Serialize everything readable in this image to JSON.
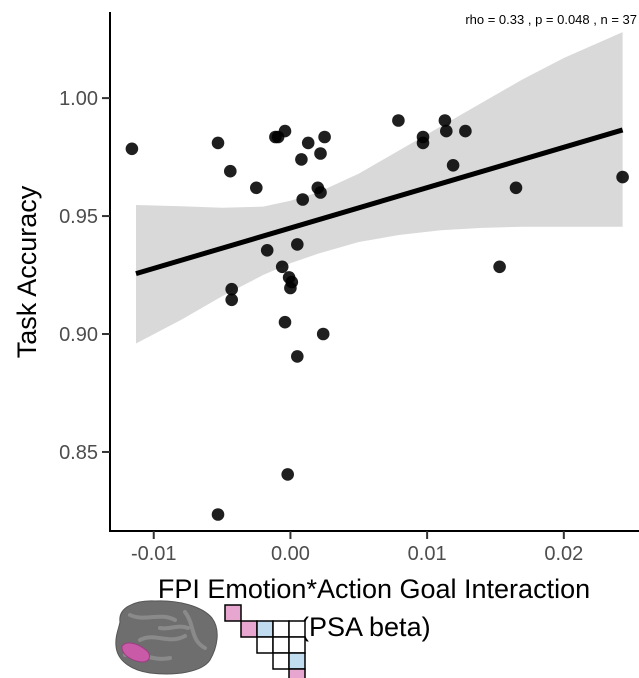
{
  "chart_data": {
    "type": "scatter",
    "title": "",
    "annotation": "rho =  0.33 , p =  0.048 , n =  37",
    "xlabel_line1": "FPI Emotion*Action Goal Interaction",
    "xlabel_line2": "(PSA beta)",
    "ylabel": "Task Accuracy",
    "xlim": [
      -0.0132,
      0.0255
    ],
    "ylim": [
      0.8165,
      1.0365
    ],
    "x_ticks": [
      {
        "value": -0.01,
        "label": "-0.01"
      },
      {
        "value": 0.0,
        "label": "0.00"
      },
      {
        "value": 0.01,
        "label": "0.01"
      },
      {
        "value": 0.02,
        "label": "0.02"
      }
    ],
    "y_ticks": [
      {
        "value": 0.85,
        "label": "0.85"
      },
      {
        "value": 0.9,
        "label": "0.90"
      },
      {
        "value": 0.95,
        "label": "0.95"
      },
      {
        "value": 1.0,
        "label": "1.00"
      }
    ],
    "grid": false,
    "fit_line": {
      "x": [
        -0.0113,
        0.0243
      ],
      "y": [
        0.9256,
        0.9865
      ]
    },
    "confidence_band": {
      "x": [
        -0.0113,
        -0.008,
        -0.005,
        -0.002,
        0.0,
        0.002,
        0.005,
        0.008,
        0.011,
        0.014,
        0.017,
        0.02,
        0.0243
      ],
      "upper": [
        0.9547,
        0.9542,
        0.9535,
        0.954,
        0.9565,
        0.96,
        0.968,
        0.978,
        0.988,
        0.998,
        1.008,
        1.017,
        1.028
      ],
      "lower": [
        0.896,
        0.906,
        0.916,
        0.925,
        0.93,
        0.934,
        0.939,
        0.942,
        0.944,
        0.945,
        0.9455,
        0.9455,
        0.9455
      ]
    },
    "points": [
      {
        "x": -0.0116,
        "y": 0.9785
      },
      {
        "x": -0.0053,
        "y": 0.981
      },
      {
        "x": -0.0053,
        "y": 0.8235
      },
      {
        "x": -0.0044,
        "y": 0.969
      },
      {
        "x": -0.0043,
        "y": 0.919
      },
      {
        "x": -0.0043,
        "y": 0.9145
      },
      {
        "x": -0.0025,
        "y": 0.962
      },
      {
        "x": -0.0017,
        "y": 0.9355
      },
      {
        "x": -0.0011,
        "y": 0.9835
      },
      {
        "x": -0.0009,
        "y": 0.9835
      },
      {
        "x": -0.0006,
        "y": 0.9285
      },
      {
        "x": -0.0004,
        "y": 0.986
      },
      {
        "x": -0.0004,
        "y": 0.905
      },
      {
        "x": -0.0002,
        "y": 0.8405
      },
      {
        "x": -0.0001,
        "y": 0.924
      },
      {
        "x": 0.0,
        "y": 0.9195
      },
      {
        "x": 0.0001,
        "y": 0.922
      },
      {
        "x": 0.0005,
        "y": 0.938
      },
      {
        "x": 0.0005,
        "y": 0.8905
      },
      {
        "x": 0.0008,
        "y": 0.974
      },
      {
        "x": 0.0009,
        "y": 0.957
      },
      {
        "x": 0.0013,
        "y": 0.981
      },
      {
        "x": 0.002,
        "y": 0.962
      },
      {
        "x": 0.0022,
        "y": 0.96
      },
      {
        "x": 0.0022,
        "y": 0.9765
      },
      {
        "x": 0.0024,
        "y": 0.9
      },
      {
        "x": 0.0025,
        "y": 0.9835
      },
      {
        "x": 0.0079,
        "y": 0.9905
      },
      {
        "x": 0.0097,
        "y": 0.9835
      },
      {
        "x": 0.0097,
        "y": 0.981
      },
      {
        "x": 0.0113,
        "y": 0.9905
      },
      {
        "x": 0.0114,
        "y": 0.986
      },
      {
        "x": 0.0119,
        "y": 0.9715
      },
      {
        "x": 0.0128,
        "y": 0.986
      },
      {
        "x": 0.0153,
        "y": 0.9285
      },
      {
        "x": 0.0165,
        "y": 0.962
      },
      {
        "x": 0.0243,
        "y": 0.9665
      }
    ]
  },
  "legend_graphic": {
    "brain_color": "#6e6e6e",
    "highlight_color": "#c85aa8",
    "matrix_pink": "#e7a6cf",
    "matrix_blue": "#c1dcee"
  }
}
